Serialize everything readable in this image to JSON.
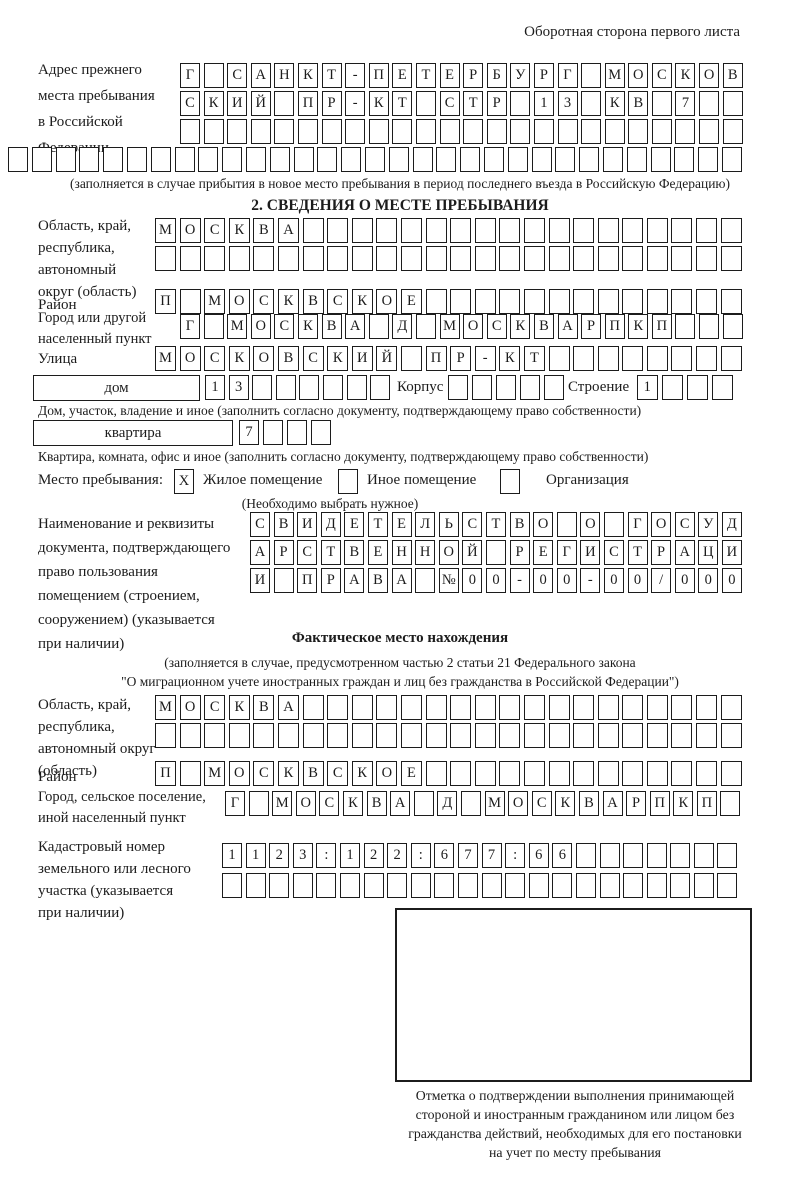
{
  "header": {
    "note": "Оборотная сторона первого листа"
  },
  "colors": {
    "ink": "#1c1c1c",
    "paper": "#ffffff"
  },
  "prev_address": {
    "label_lines": [
      "Адрес прежнего",
      "места пребывания",
      "в Российской",
      "Федерации"
    ],
    "row1": {
      "text": "Г САНКТ-ПЕТЕРБУРГ МОСКОВ",
      "len": 24
    },
    "row2": {
      "text": "СКИЙ ПР-КТ СТР 13 КВ 7",
      "len": 24
    },
    "row3": {
      "len": 24
    },
    "row4": {
      "len": 31
    },
    "caption": "(заполняется в случае прибытия в новое место пребывания в период последнего въезда в Российскую Федерацию)"
  },
  "section2": {
    "title": "2. СВЕДЕНИЯ О МЕСТЕ ПРЕБЫВАНИЯ",
    "region": {
      "label_lines": [
        "Область, край,",
        "республика,",
        "автономный",
        "округ (область)"
      ],
      "row1": {
        "text": "МОСКВА",
        "len": 24
      },
      "row2": {
        "len": 24
      }
    },
    "district": {
      "label": "Район",
      "row": {
        "text": "П МОСКВСКОЕ",
        "len": 24
      }
    },
    "city": {
      "label_lines": [
        "Город или другой",
        "населенный пункт"
      ],
      "row": {
        "text": "Г МОСКВА Д МОСКВАРПКП",
        "len": 24
      }
    },
    "street": {
      "label": "Улица",
      "row": {
        "text": "МОСКОВСКИЙ ПР-КТ",
        "len": 24
      }
    },
    "house": {
      "box_label": "дом",
      "cells": {
        "text": "13",
        "len": 8
      },
      "korpus_label": "Корпус",
      "korpus_cells": {
        "len": 5
      },
      "stroenie_label": "Строение",
      "stroenie_cells": {
        "text": "1",
        "len": 4
      },
      "caption": "Дом, участок, владение и иное (заполнить согласно документу, подтверждающему право собственности)"
    },
    "apartment": {
      "box_label": "квартира",
      "cells": {
        "text": "7",
        "len": 4
      },
      "caption": "Квартира, комната, офис и иное (заполнить согласно документу, подтверждающему право собственности)"
    },
    "stay_type": {
      "label": "Место пребывания:",
      "options": [
        {
          "label": "Жилое помещение",
          "checked": "X"
        },
        {
          "label": "Иное помещение",
          "checked": ""
        },
        {
          "label": "Организация",
          "checked": ""
        }
      ],
      "caption": "(Необходимо выбрать нужное)"
    },
    "doc": {
      "label_lines": [
        "Наименование и реквизиты",
        "документа, подтверждающего",
        "право пользования",
        "помещением (строением,",
        "сооружением) (указывается",
        "при наличии)"
      ],
      "row1": {
        "text": "СВИДЕТЕЛЬСТВО О ГОСУД",
        "len": 21
      },
      "row2": {
        "text": "АРСТВЕННОЙ РЕГИСТРАЦИ",
        "len": 21
      },
      "row3": {
        "text": "И ПРАВА №00-00-00/000",
        "len": 21
      }
    }
  },
  "actual_location": {
    "title": "Фактическое место нахождения",
    "caption_lines": [
      "(заполняется в случае, предусмотренном частью 2 статьи 21 Федерального закона",
      "\"О миграционном учете иностранных граждан и лиц без гражданства в Российской Федерации\")"
    ],
    "region": {
      "label_lines": [
        "Область, край,",
        "республика,",
        "автономный округ",
        "(область)"
      ],
      "row1": {
        "text": "МОСКВА",
        "len": 24
      },
      "row2": {
        "len": 24
      }
    },
    "district": {
      "label": "Район",
      "row": {
        "text": "П МОСКВСКОЕ",
        "len": 24
      }
    },
    "city": {
      "label_lines": [
        "Город, сельское поселение,",
        "иной населенный пункт"
      ],
      "row": {
        "text": "Г МОСКВА Д МОСКВАРПКП",
        "len": 22
      }
    },
    "cadastre": {
      "label_lines": [
        "Кадастровый номер",
        "земельного или лесного",
        "участка (указывается",
        "при наличии)"
      ],
      "row1": {
        "text": "1123:122:677:66",
        "len": 22
      },
      "row2": {
        "len": 22
      }
    },
    "stamp_note_lines": [
      "Отметка о подтверждении выполнения принимающей",
      "стороной и иностранным гражданином или лицом без",
      "гражданства действий, необходимых для его постановки",
      "на учет по месту пребывания"
    ]
  }
}
